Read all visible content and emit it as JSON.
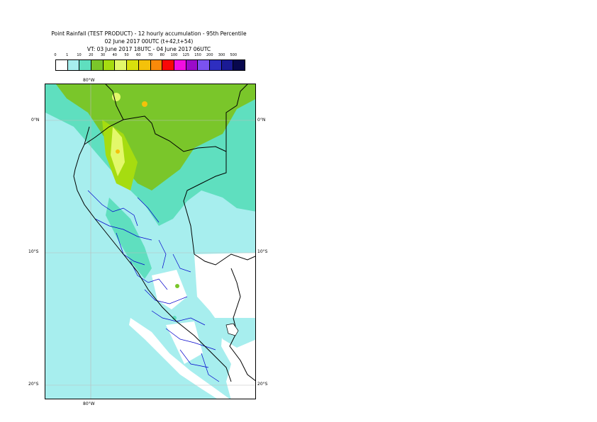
{
  "title": {
    "line1": "Point Rainfall (TEST PRODUCT) - 12 hourly accumulation - 95th Percentile",
    "line2": "02 June 2017 00UTC (t+42,t+54)",
    "line3": "VT: 03 June 2017 18UTC - 04 June 2017 06UTC"
  },
  "legend": {
    "thresholds": [
      "0",
      "1",
      "10",
      "20",
      "30",
      "40",
      "50",
      "60",
      "70",
      "80",
      "100",
      "125",
      "150",
      "200",
      "300",
      "500"
    ],
    "colors": [
      "#ffffff",
      "#a7eeee",
      "#5fdfbf",
      "#7ac62a",
      "#a6dc10",
      "#e3f86a",
      "#d9e00d",
      "#f4c20a",
      "#f98a0a",
      "#fa0808",
      "#f20ee0",
      "#9a0cc9",
      "#7b52f0",
      "#2e2ec0",
      "#1a1a94",
      "#08084e"
    ]
  },
  "map": {
    "lon_labels": {
      "top": "80°W",
      "bottom": "80°W"
    },
    "lat_labels": [
      {
        "id": "lat0",
        "text": "0°N"
      },
      {
        "id": "lat10",
        "text": "10°S"
      },
      {
        "id": "lat20",
        "text": "20°S"
      }
    ],
    "region": "Peru",
    "colors": {
      "ocean_light": "#a7eeee",
      "medium": "#5fdfbf",
      "green": "#7ac62a",
      "yellow_green": "#a6dc10",
      "yellow": "#e3f86a",
      "orange": "#f4c20a",
      "border_country": "#000000",
      "border_region": "#0000cc",
      "gridline": "#bbbbbb"
    }
  }
}
